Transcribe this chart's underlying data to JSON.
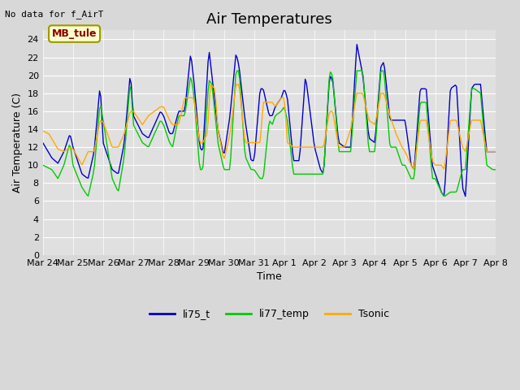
{
  "title": "Air Temperatures",
  "no_data_label": "No data for f_AirT",
  "mb_tule_label": "MB_tule",
  "xlabel": "Time",
  "ylabel": "Air Temperature (C)",
  "ylim": [
    0,
    25
  ],
  "yticks": [
    0,
    2,
    4,
    6,
    8,
    10,
    12,
    14,
    16,
    18,
    20,
    22,
    24
  ],
  "legend_labels": [
    "li75_t",
    "li77_temp",
    "Tsonic"
  ],
  "line_colors": [
    "#0000cc",
    "#00cc00",
    "#ffaa00"
  ],
  "bg_color": "#d8d8d8",
  "plot_bg_color": "#e0e0e0",
  "x_tick_labels": [
    "Mar 24",
    "Mar 25",
    "Mar 26",
    "Mar 27",
    "Mar 28",
    "Mar 29",
    "Mar 30",
    "Mar 31",
    "Apr 1",
    "Apr 2",
    "Apr 3",
    "Apr 4",
    "Apr 5",
    "Apr 6",
    "Apr 7",
    "Apr 8"
  ],
  "title_fontsize": 13,
  "axis_label_fontsize": 9,
  "tick_fontsize": 8,
  "legend_fontsize": 9,
  "n_days": 15,
  "mb_tule_color": "#880000",
  "mb_tule_bg": "#ffffcc",
  "mb_tule_edge": "#999900"
}
